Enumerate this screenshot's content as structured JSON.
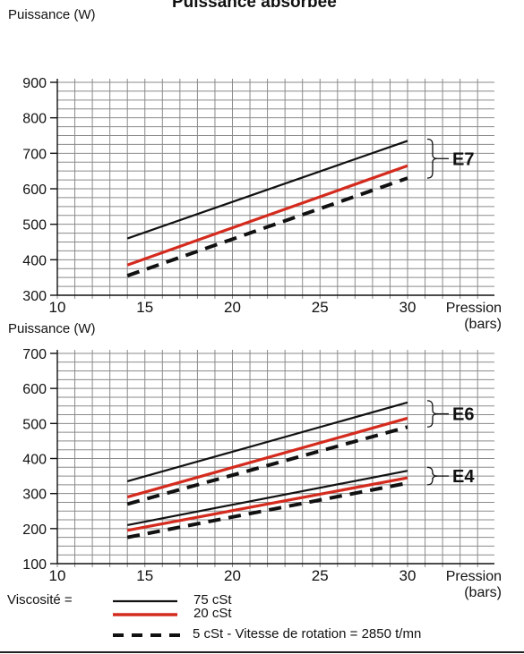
{
  "header": {
    "y_unit": "Puissance (W)",
    "title": "Puissance absorbée"
  },
  "legend": {
    "prefix": "Viscosité =",
    "items": [
      {
        "label": "75 cSt",
        "color": "#111111",
        "style": "solid"
      },
      {
        "label": "20 cSt",
        "color": "#d42b1e",
        "style": "solid"
      },
      {
        "label": "5 cSt - Vitesse de rotation = 2850 t/mn",
        "color": "#111111",
        "style": "dashed"
      }
    ]
  },
  "colors": {
    "grid": "#8a8a8a",
    "black": "#111111",
    "red": "#d42b1e"
  },
  "chart_data": [
    {
      "type": "line",
      "title": "Puissance absorbée",
      "ylabel": "Puissance (W)",
      "xlabel": "Pression (bars)",
      "xlabel_line1": "Pression",
      "xlabel_line2": "(bars)",
      "xlim": [
        10,
        30
      ],
      "ylim": [
        300,
        900
      ],
      "xticks": [
        10,
        15,
        20,
        25,
        30
      ],
      "yticks": [
        300,
        400,
        500,
        600,
        700,
        800,
        900
      ],
      "grid": true,
      "groups": [
        {
          "label": "E7",
          "range": [
            630,
            740
          ]
        }
      ],
      "series": [
        {
          "name": "75 cSt",
          "group": "E7",
          "x": [
            14,
            30
          ],
          "y": [
            460,
            735
          ]
        },
        {
          "name": "20 cSt",
          "group": "E7",
          "x": [
            14,
            30
          ],
          "y": [
            385,
            665
          ]
        },
        {
          "name": "5 cSt",
          "group": "E7",
          "x": [
            14,
            30
          ],
          "y": [
            355,
            630
          ]
        }
      ]
    },
    {
      "type": "line",
      "ylabel": "Puissance (W)",
      "xlabel": "Pression (bars)",
      "xlabel_line1": "Pression",
      "xlabel_line2": "(bars)",
      "xlim": [
        10,
        30
      ],
      "ylim": [
        100,
        700
      ],
      "xticks": [
        10,
        15,
        20,
        25,
        30
      ],
      "yticks": [
        100,
        200,
        300,
        400,
        500,
        600,
        700
      ],
      "grid": true,
      "groups": [
        {
          "label": "E6",
          "range": [
            490,
            565
          ]
        },
        {
          "label": "E4",
          "range": [
            325,
            375
          ]
        }
      ],
      "series": [
        {
          "name": "75 cSt",
          "group": "E6",
          "x": [
            14,
            30
          ],
          "y": [
            335,
            560
          ]
        },
        {
          "name": "20 cSt",
          "group": "E6",
          "x": [
            14,
            30
          ],
          "y": [
            290,
            515
          ]
        },
        {
          "name": "5 cSt",
          "group": "E6",
          "x": [
            14,
            30
          ],
          "y": [
            270,
            490
          ]
        },
        {
          "name": "75 cSt",
          "group": "E4",
          "x": [
            14,
            30
          ],
          "y": [
            210,
            365
          ]
        },
        {
          "name": "20 cSt",
          "group": "E4",
          "x": [
            14,
            30
          ],
          "y": [
            195,
            345
          ]
        },
        {
          "name": "5 cSt",
          "group": "E4",
          "x": [
            14,
            30
          ],
          "y": [
            175,
            330
          ]
        }
      ]
    }
  ]
}
